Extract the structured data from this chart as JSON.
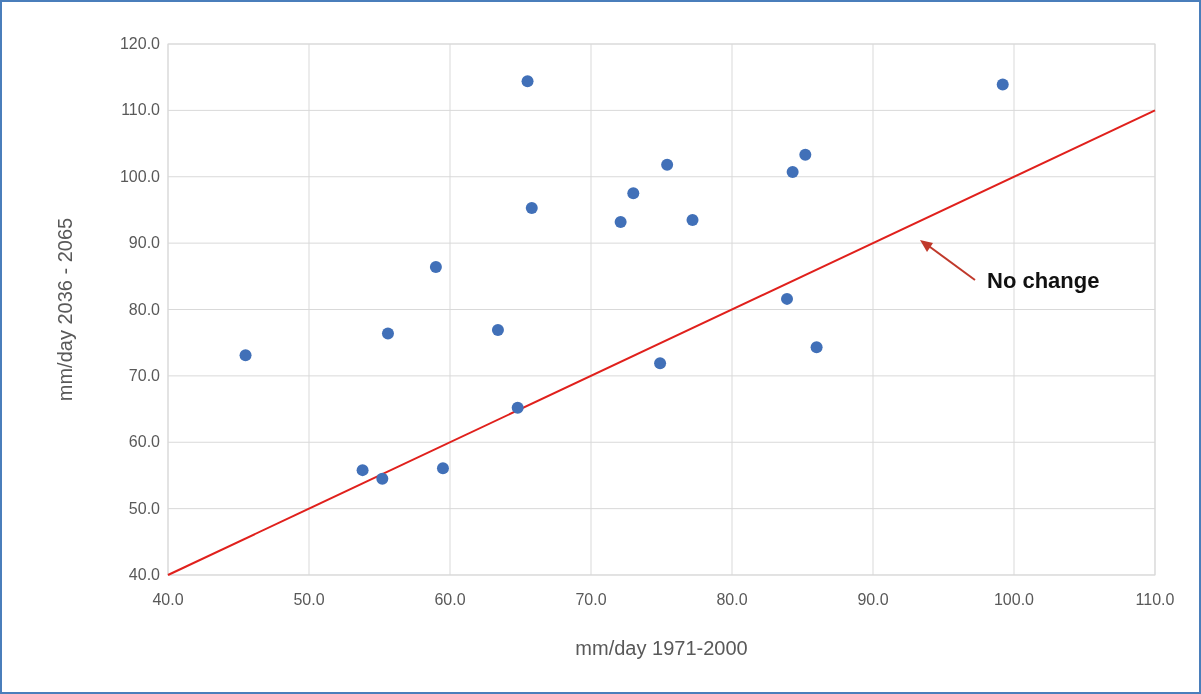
{
  "chart_data": {
    "type": "scatter",
    "xlabel": "mm/day 1971-2000",
    "ylabel": "mm/day 2036 - 2065",
    "series": [
      {
        "marker": "circle",
        "color": "#4170b8",
        "x": [
          45.5,
          53.8,
          55.2,
          55.6,
          59.0,
          59.5,
          63.4,
          64.8,
          65.5,
          65.8,
          72.1,
          73.0,
          74.9,
          75.4,
          77.2,
          83.9,
          84.3,
          85.2,
          86.0,
          99.2
        ],
        "values": [
          73.1,
          55.8,
          54.5,
          76.4,
          86.4,
          56.1,
          76.9,
          65.2,
          114.4,
          95.3,
          93.2,
          97.5,
          71.9,
          101.8,
          93.5,
          81.6,
          100.7,
          103.3,
          74.3,
          113.9
        ]
      },
      {
        "type": "line",
        "color": "#e0201c",
        "x": [
          40,
          110
        ],
        "values": [
          40,
          110
        ],
        "marker": "none"
      }
    ],
    "xlim": [
      40,
      110
    ],
    "ylim": [
      40,
      120
    ],
    "xticks": [
      {
        "value": 40,
        "label": "40.0"
      },
      {
        "value": 50,
        "label": "50.0"
      },
      {
        "value": 60,
        "label": "60.0"
      },
      {
        "value": 70,
        "label": "70.0"
      },
      {
        "value": 80,
        "label": "80.0"
      },
      {
        "value": 90,
        "label": "90.0"
      },
      {
        "value": 100,
        "label": "100.0"
      },
      {
        "value": 110,
        "label": "110.0"
      }
    ],
    "yticks": [
      {
        "value": 40,
        "label": "40.0"
      },
      {
        "value": 50,
        "label": "50.0"
      },
      {
        "value": 60,
        "label": "60.0"
      },
      {
        "value": 70,
        "label": "70.0"
      },
      {
        "value": 80,
        "label": "80.0"
      },
      {
        "value": 90,
        "label": "90.0"
      },
      {
        "value": 100,
        "label": "100.0"
      },
      {
        "value": 110,
        "label": "110.0"
      },
      {
        "value": 120,
        "label": "120.0"
      }
    ],
    "grid": true,
    "annotations": [
      "No change"
    ]
  }
}
